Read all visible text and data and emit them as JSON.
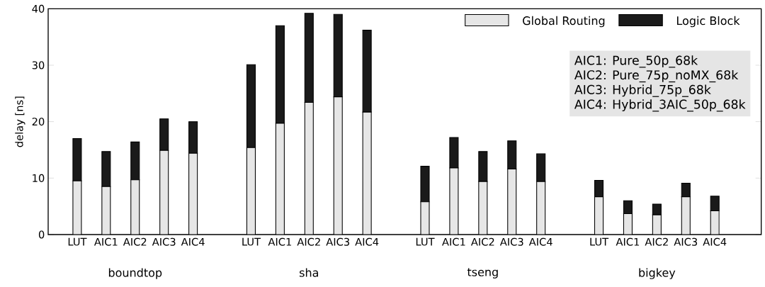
{
  "chart_data": {
    "type": "bar",
    "stacked": true,
    "ylabel": "delay [ns]",
    "categories": [
      "LUT",
      "AIC1",
      "AIC2",
      "AIC3",
      "AIC4",
      "LUT",
      "AIC1",
      "AIC2",
      "AIC3",
      "AIC4",
      "LUT",
      "AIC1",
      "AIC2",
      "AIC3",
      "AIC4",
      "LUT",
      "AIC1",
      "AIC2",
      "AIC3",
      "AIC4"
    ],
    "series": [
      {
        "name": "Global Routing",
        "color": "#e6e6e6",
        "values": [
          9.5,
          8.5,
          9.7,
          14.9,
          14.4,
          15.4,
          19.7,
          23.4,
          24.4,
          21.7,
          5.8,
          11.8,
          9.4,
          11.6,
          9.4,
          6.7,
          3.7,
          3.5,
          6.7,
          4.2
        ]
      },
      {
        "name": "Logic Block",
        "color": "#1a1a1a",
        "values": [
          7.5,
          6.2,
          6.7,
          5.6,
          5.6,
          14.7,
          17.3,
          15.8,
          14.6,
          14.5,
          6.3,
          5.4,
          5.3,
          5.0,
          4.9,
          2.9,
          2.3,
          1.9,
          2.4,
          2.6
        ]
      }
    ],
    "ylim": [
      0,
      40
    ],
    "yticks": [
      0,
      10,
      20,
      30,
      40
    ],
    "legend": "top right",
    "annotations": [
      "boundtop",
      "sha",
      "tseng",
      "bigkey",
      "AIC1: Pure_50p_68k",
      "AIC2: Pure_75p_noMX_68k",
      "AIC3: Hybrid_75p_68k",
      "AIC4: Hybrid_3AIC_50p_68k"
    ]
  }
}
